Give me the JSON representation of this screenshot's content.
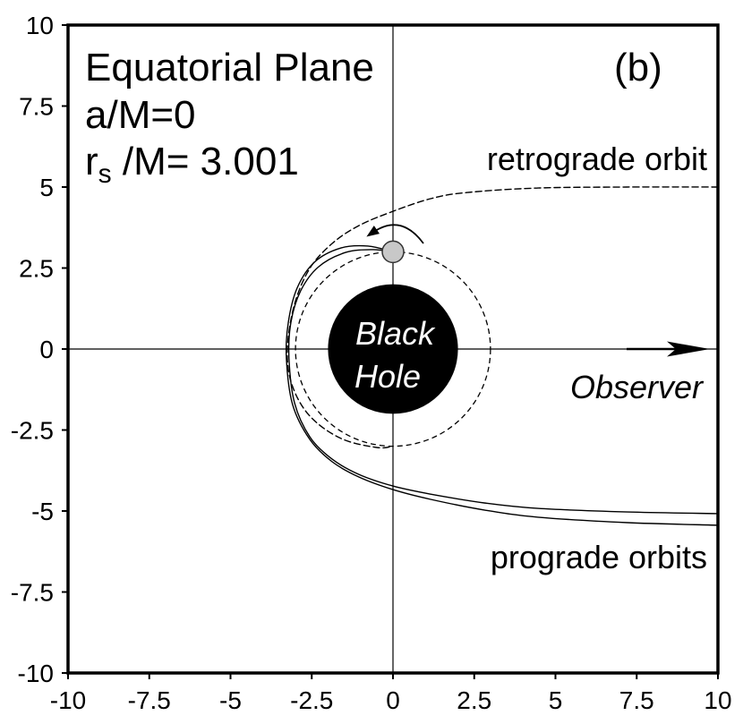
{
  "labels": {
    "plane": "Equatorial Plane",
    "spin": "a/M=0",
    "radius_symbol": "r",
    "radius_subscript": "s",
    "radius_value": " /M= 3.001",
    "panel": "(b)",
    "black_hole_line1": "Black",
    "black_hole_line2": "Hole",
    "observer": "Observer"
  },
  "colors": {
    "background": "#ffffff",
    "line": "#000000",
    "black_hole": "#000000",
    "black_hole_text": "#ffffff",
    "source_fill": "#c8c8c8",
    "source_stroke": "#333333"
  },
  "chart_data": {
    "type": "line",
    "xlim": [
      -10,
      10
    ],
    "ylim": [
      -10,
      10
    ],
    "x_ticks": [
      -10,
      -7.5,
      -5,
      -2.5,
      0,
      2.5,
      5,
      7.5,
      10
    ],
    "y_ticks": [
      10,
      7.5,
      5,
      2.5,
      0,
      -2.5,
      -5,
      -7.5,
      -10
    ],
    "grid": false,
    "reference_lines": {
      "x": 0,
      "y": 0
    },
    "series": [
      {
        "name": "retrograde orbit",
        "line_style": "dashed",
        "curves": [
          {
            "x": [
              10,
              7.2,
              4.46,
              2.26,
              1.16,
              0,
              -1.05,
              -1.87,
              -2.56,
              -3.03,
              -3.25,
              -3.11,
              -2.56,
              -1.6,
              -0.5,
              0
            ],
            "y": [
              5.0,
              5.0,
              4.97,
              4.83,
              4.64,
              4.25,
              3.81,
              3.26,
              2.49,
              1.38,
              0,
              -1.1,
              -2.07,
              -2.76,
              -3.04,
              -3.0
            ]
          }
        ]
      },
      {
        "name": "prograde orbits",
        "line_style": "solid",
        "curves": [
          {
            "x": [
              10,
              7.22,
              4.46,
              2.81,
              1.16,
              0,
              -1.05,
              -1.87,
              -2.56,
              -3.03,
              -3.2,
              -3.14,
              -2.84,
              -2.29,
              -1.46,
              -0.63,
              0
            ],
            "y": [
              -5.08,
              -5.03,
              -4.92,
              -4.75,
              -4.48,
              -4.23,
              -3.87,
              -3.4,
              -2.71,
              -1.66,
              -0.28,
              0.83,
              1.8,
              2.54,
              2.98,
              3.07,
              3.0
            ]
          },
          {
            "x": [
              10,
              7.22,
              4.46,
              2.81,
              1.16,
              0,
              -1.05,
              -1.87,
              -2.56,
              -3.09,
              -3.28,
              -3.22,
              -2.95,
              -2.42,
              -1.6,
              -0.77,
              0
            ],
            "y": [
              -5.44,
              -5.36,
              -5.19,
              -4.97,
              -4.64,
              -4.34,
              -3.95,
              -3.48,
              -2.79,
              -1.71,
              -0.28,
              0.83,
              1.88,
              2.68,
              3.12,
              3.18,
              3.0
            ]
          }
        ]
      }
    ],
    "black_hole": {
      "x": 0,
      "y": 0,
      "radius": 2
    },
    "photon_circle": {
      "x": 0,
      "y": 0,
      "radius": 3,
      "line_style": "dashed"
    },
    "source": {
      "x": 0,
      "y": 3.001
    }
  }
}
